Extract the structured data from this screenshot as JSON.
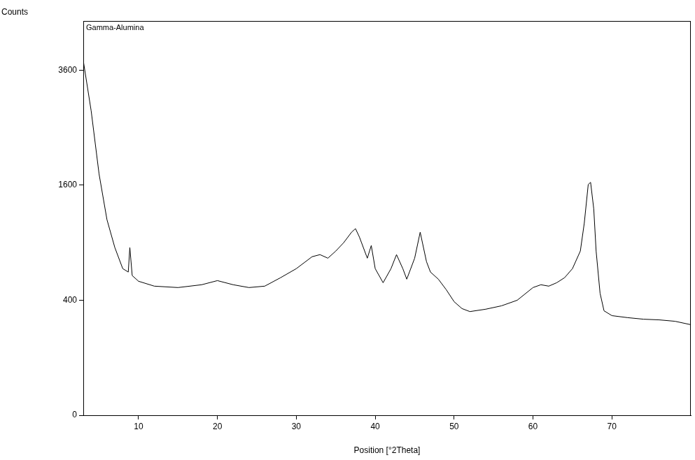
{
  "chart_data": {
    "type": "line",
    "title": "Gamma-Alumina",
    "x_label": "Position [°2Theta]",
    "y_label": "Counts",
    "x": [
      3,
      4,
      5,
      6,
      7,
      8,
      8.7,
      8.9,
      9.2,
      10,
      12,
      15,
      18,
      20,
      22,
      24,
      26,
      28,
      30,
      32,
      33,
      34,
      35,
      36,
      37,
      37.5,
      38,
      39,
      39.5,
      40,
      41,
      42,
      42.7,
      43.5,
      44,
      45,
      45.7,
      46.5,
      47,
      48,
      49,
      50,
      51,
      52,
      54,
      56,
      58,
      60,
      61,
      62,
      63,
      64,
      65,
      66,
      66.5,
      67,
      67.3,
      67.7,
      68,
      68.5,
      69,
      70,
      72,
      74,
      76,
      78,
      80
    ],
    "series": [
      {
        "name": "Gamma-Alumina",
        "color": "#000000",
        "values": [
          3800,
          2800,
          1760,
          1157,
          850,
          650,
          620,
          850,
          590,
          543,
          504,
          493,
          515,
          548,
          515,
          493,
          504,
          572,
          650,
          760,
          780,
          746,
          815,
          900,
          1013,
          1053,
          960,
          746,
          871,
          650,
          531,
          650,
          780,
          650,
          560,
          746,
          1013,
          713,
          620,
          560,
          477,
          390,
          344,
          325,
          340,
          362,
          400,
          493,
          515,
          504,
          531,
          572,
          650,
          815,
          1117,
          1610,
          1640,
          1287,
          815,
          450,
          330,
          300,
          288,
          279,
          275,
          267,
          248
        ]
      }
    ],
    "xlim": [
      3,
      80
    ],
    "xticks": [
      10,
      20,
      30,
      40,
      50,
      60,
      70
    ],
    "ylim": [
      0,
      4700
    ],
    "yticks": [
      0,
      400,
      1600,
      3600
    ],
    "grid": false
  }
}
